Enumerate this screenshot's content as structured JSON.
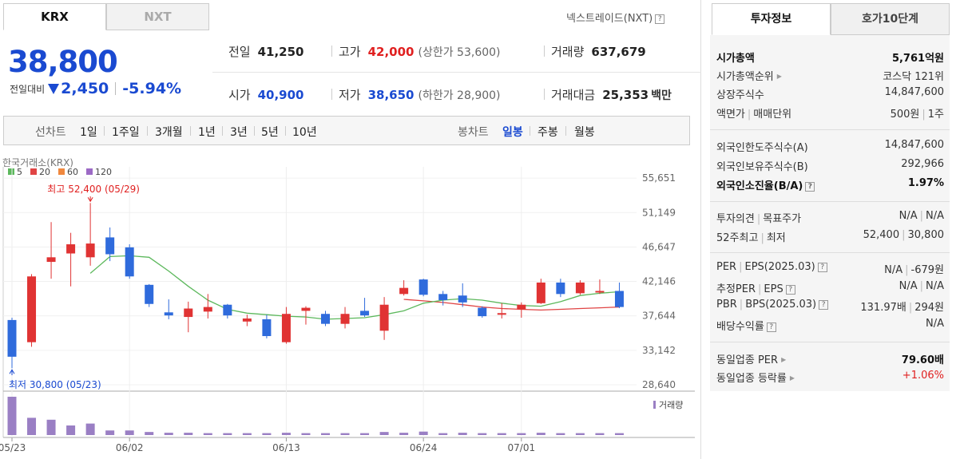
{
  "market_tabs": [
    {
      "label": "KRX",
      "active": true
    },
    {
      "label": "NXT",
      "active": false
    }
  ],
  "nxt_link": "넥스트레이드(NXT)",
  "price": {
    "current": "38,800",
    "change_label": "전일대비",
    "change_value": "2,450",
    "change_pct": "-5.94%",
    "direction": "down",
    "color": "#1a4ad1"
  },
  "quote": {
    "prev_label": "전일",
    "prev": "41,250",
    "high_label": "고가",
    "high": "42,000",
    "upper_limit": "(상한가 53,600)",
    "volume_label": "거래량",
    "volume": "637,679",
    "open_label": "시가",
    "open": "40,900",
    "low_label": "저가",
    "low": "38,650",
    "lower_limit": "(하한가 28,900)",
    "amount_label": "거래대금",
    "amount": "25,353",
    "amount_unit": "백만"
  },
  "period_bar": {
    "line_label": "선차트",
    "line_periods": [
      "1일",
      "1주일",
      "3개월",
      "1년",
      "3년",
      "5년",
      "10년"
    ],
    "candle_label": "봉차트",
    "candle_periods": [
      "일봉",
      "주봉",
      "월봉"
    ],
    "selected": "일봉"
  },
  "chart_data": {
    "type": "candlestick",
    "source_label": "한국거래소(KRX)",
    "legend": [
      {
        "name": "5",
        "color": "#5cb85c"
      },
      {
        "name": "20",
        "color": "#e04444"
      },
      {
        "name": "60",
        "color": "#f0883e"
      },
      {
        "name": "120",
        "color": "#9c6ac5"
      }
    ],
    "ylim": [
      27800,
      56500
    ],
    "y_ticks": [
      "55,651",
      "51,149",
      "46,647",
      "42,146",
      "37,644",
      "33,142",
      "28,640"
    ],
    "y_tick_values": [
      55651,
      51149,
      46647,
      42146,
      37644,
      33142,
      28640
    ],
    "x_labels": [
      {
        "index": 0,
        "label": "05/23"
      },
      {
        "index": 6,
        "label": "06/02"
      },
      {
        "index": 14,
        "label": "06/13"
      },
      {
        "index": 21,
        "label": "06/24"
      },
      {
        "index": 26,
        "label": "07/01"
      }
    ],
    "max_annotation": "최고 52,400 (05/29)",
    "min_annotation": "최저 30,800 (05/23)",
    "max_index": 4,
    "min_index": 0,
    "volume_label": "거래량",
    "candles": [
      {
        "o": 37100,
        "h": 37400,
        "l": 30800,
        "c": 32300,
        "v": 100
      },
      {
        "o": 34200,
        "h": 43100,
        "l": 33600,
        "c": 42800,
        "v": 45
      },
      {
        "o": 44700,
        "h": 49900,
        "l": 42500,
        "c": 45300,
        "v": 40
      },
      {
        "o": 45800,
        "h": 48500,
        "l": 41500,
        "c": 47000,
        "v": 25
      },
      {
        "o": 45300,
        "h": 52400,
        "l": 44200,
        "c": 47100,
        "v": 30
      },
      {
        "o": 47900,
        "h": 49200,
        "l": 44800,
        "c": 45700,
        "v": 12
      },
      {
        "o": 46600,
        "h": 47000,
        "l": 42500,
        "c": 42800,
        "v": 12
      },
      {
        "o": 41700,
        "h": 41800,
        "l": 38800,
        "c": 39200,
        "v": 8
      },
      {
        "o": 38100,
        "h": 39800,
        "l": 37200,
        "c": 37700,
        "v": 6
      },
      {
        "o": 37500,
        "h": 39500,
        "l": 35500,
        "c": 38600,
        "v": 6
      },
      {
        "o": 38200,
        "h": 40500,
        "l": 37300,
        "c": 38800,
        "v": 5
      },
      {
        "o": 39100,
        "h": 39200,
        "l": 37300,
        "c": 37700,
        "v": 5
      },
      {
        "o": 36900,
        "h": 37800,
        "l": 36300,
        "c": 37300,
        "v": 5
      },
      {
        "o": 37200,
        "h": 37800,
        "l": 34700,
        "c": 35000,
        "v": 5
      },
      {
        "o": 34200,
        "h": 38800,
        "l": 34000,
        "c": 37900,
        "v": 6
      },
      {
        "o": 38300,
        "h": 38900,
        "l": 36500,
        "c": 38700,
        "v": 5
      },
      {
        "o": 37900,
        "h": 38300,
        "l": 36300,
        "c": 36600,
        "v": 5
      },
      {
        "o": 36600,
        "h": 38800,
        "l": 36000,
        "c": 37900,
        "v": 5
      },
      {
        "o": 38300,
        "h": 40000,
        "l": 37500,
        "c": 37700,
        "v": 5
      },
      {
        "o": 35700,
        "h": 40100,
        "l": 34500,
        "c": 39100,
        "v": 8
      },
      {
        "o": 40500,
        "h": 42300,
        "l": 40300,
        "c": 41300,
        "v": 6
      },
      {
        "o": 42400,
        "h": 42500,
        "l": 40200,
        "c": 40400,
        "v": 9
      },
      {
        "o": 40500,
        "h": 40900,
        "l": 39000,
        "c": 39700,
        "v": 5
      },
      {
        "o": 40300,
        "h": 41900,
        "l": 38800,
        "c": 39400,
        "v": 6
      },
      {
        "o": 38700,
        "h": 38900,
        "l": 37400,
        "c": 37600,
        "v": 5
      },
      {
        "o": 37800,
        "h": 39300,
        "l": 37300,
        "c": 38000,
        "v": 5
      },
      {
        "o": 38500,
        "h": 39400,
        "l": 37400,
        "c": 39100,
        "v": 5
      },
      {
        "o": 39300,
        "h": 42500,
        "l": 39200,
        "c": 42000,
        "v": 6
      },
      {
        "o": 42000,
        "h": 42500,
        "l": 40100,
        "c": 40500,
        "v": 5
      },
      {
        "o": 40600,
        "h": 42300,
        "l": 40400,
        "c": 42000,
        "v": 5
      },
      {
        "o": 40800,
        "h": 42400,
        "l": 40500,
        "c": 40900,
        "v": 5
      },
      {
        "o": 40900,
        "h": 42000,
        "l": 38650,
        "c": 38800,
        "v": 5
      }
    ],
    "ma5": [
      null,
      null,
      null,
      null,
      43200,
      45400,
      45500,
      45300,
      43500,
      41500,
      39700,
      38500,
      38000,
      37800,
      37600,
      37500,
      37200,
      37300,
      37400,
      37800,
      38300,
      39300,
      39700,
      39900,
      39700,
      39300,
      39000,
      38900,
      39500,
      40300,
      40600,
      40800
    ],
    "ma20": [
      null,
      null,
      null,
      null,
      null,
      null,
      null,
      null,
      null,
      null,
      null,
      null,
      null,
      null,
      null,
      null,
      null,
      null,
      null,
      null,
      39800,
      39600,
      39400,
      39100,
      38800,
      38600,
      38500,
      38400,
      38500,
      38600,
      38700,
      38800
    ]
  },
  "right_tabs": [
    {
      "label": "투자정보",
      "active": true
    },
    {
      "label": "호가10단계",
      "active": false
    }
  ],
  "invest": {
    "market_cap_label": "시가총액",
    "market_cap": "5,761억원",
    "market_cap_rank_label": "시가총액순위",
    "market_cap_rank": "코스닥 121위",
    "shares_label": "상장주식수",
    "shares": "14,847,600",
    "par_label": "액면가",
    "unit_label": "매매단위",
    "par": "500원",
    "unit": "1주",
    "foreign_limit_label": "외국인한도주식수(A)",
    "foreign_limit": "14,847,600",
    "foreign_hold_label": "외국인보유주식수(B)",
    "foreign_hold": "292,966",
    "foreign_ratio_label": "외국인소진율(B/A)",
    "foreign_ratio": "1.97%",
    "opinion_label": "투자의견",
    "target_label": "목표주가",
    "opinion": "N/A",
    "target": "N/A",
    "w52_high_label": "52주최고",
    "w52_low_label": "최저",
    "w52_high": "52,400",
    "w52_low": "30,800",
    "per_label": "PER",
    "eps_label": "EPS(2025.03)",
    "per": "N/A",
    "eps": "-679원",
    "est_per_label": "추정PER",
    "est_eps_label": "EPS",
    "est_per": "N/A",
    "est_eps": "N/A",
    "pbr_label": "PBR",
    "bps_label": "BPS(2025.03)",
    "pbr": "131.97배",
    "bps": "294원",
    "div_label": "배당수익률",
    "div": "N/A",
    "sector_per_label": "동일업종 PER",
    "sector_per": "79.60배",
    "sector_chg_label": "동일업종 등락률",
    "sector_chg": "+1.06%"
  }
}
